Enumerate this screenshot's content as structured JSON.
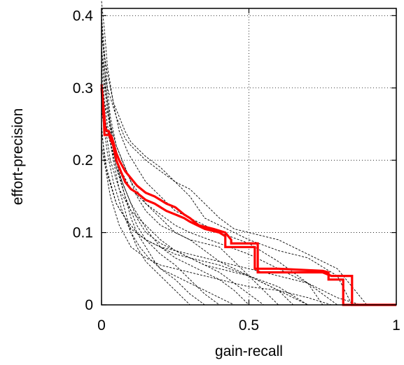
{
  "chart_data": {
    "type": "line",
    "title": "",
    "xlabel": "gain-recall",
    "ylabel": "effort-precision",
    "xlim": [
      0,
      1
    ],
    "ylim": [
      0,
      0.41
    ],
    "xticks": [
      0,
      0.5,
      1
    ],
    "xtick_labels": [
      "0",
      "0.5",
      "1"
    ],
    "yticks": [
      0,
      0.1,
      0.2,
      0.3,
      0.4
    ],
    "ytick_labels": [
      "0",
      "0.1",
      "0.2",
      "0.3",
      "0.4"
    ],
    "grid": true,
    "legend": "none",
    "colors": {
      "highlight": "#ff0000",
      "background": "#000000"
    },
    "series": [
      {
        "style": "highlight",
        "x": [
          0,
          0.005,
          0.01,
          0.012,
          0.02,
          0.025,
          0.03,
          0.04,
          0.05,
          0.06,
          0.07,
          0.08,
          0.1,
          0.12,
          0.15,
          0.18,
          0.2,
          0.22,
          0.25,
          0.28,
          0.3,
          0.35,
          0.4,
          0.42,
          0.42,
          0.5,
          0.52,
          0.52,
          0.6,
          0.7,
          0.75,
          0.77,
          0.77,
          0.8,
          0.82,
          0.82,
          1.0
        ],
        "y": [
          0.305,
          0.28,
          0.26,
          0.245,
          0.24,
          0.24,
          0.23,
          0.22,
          0.2,
          0.19,
          0.18,
          0.17,
          0.16,
          0.155,
          0.145,
          0.14,
          0.135,
          0.13,
          0.125,
          0.12,
          0.115,
          0.105,
          0.1,
          0.095,
          0.08,
          0.08,
          0.08,
          0.05,
          0.05,
          0.048,
          0.047,
          0.045,
          0.035,
          0.035,
          0.035,
          0,
          0
        ]
      },
      {
        "style": "highlight",
        "x": [
          0,
          0.004,
          0.008,
          0.01,
          0.02,
          0.03,
          0.035,
          0.04,
          0.05,
          0.06,
          0.08,
          0.1,
          0.12,
          0.15,
          0.18,
          0.2,
          0.22,
          0.25,
          0.28,
          0.3,
          0.33,
          0.38,
          0.42,
          0.44,
          0.44,
          0.5,
          0.53,
          0.53,
          0.6,
          0.7,
          0.75,
          0.78,
          0.78,
          0.83,
          0.85,
          0.85,
          1.0
        ],
        "y": [
          0.3,
          0.275,
          0.255,
          0.235,
          0.235,
          0.235,
          0.232,
          0.225,
          0.21,
          0.2,
          0.185,
          0.175,
          0.165,
          0.155,
          0.15,
          0.145,
          0.14,
          0.135,
          0.125,
          0.12,
          0.11,
          0.105,
          0.1,
          0.09,
          0.085,
          0.085,
          0.085,
          0.045,
          0.045,
          0.045,
          0.045,
          0.04,
          0.04,
          0.04,
          0.04,
          0,
          0
        ]
      },
      {
        "style": "background",
        "x": [
          0,
          0.01,
          0.02,
          0.04,
          0.06,
          0.08,
          0.1,
          0.15,
          0.2,
          0.25,
          0.3,
          0.35,
          0.4,
          0.5,
          0.6,
          0.7,
          0.8,
          0.85
        ],
        "y": [
          0.42,
          0.38,
          0.33,
          0.28,
          0.26,
          0.24,
          0.225,
          0.205,
          0.19,
          0.17,
          0.15,
          0.12,
          0.11,
          0.09,
          0.075,
          0.065,
          0.04,
          0
        ]
      },
      {
        "style": "background",
        "x": [
          0,
          0.01,
          0.02,
          0.03,
          0.05,
          0.08,
          0.1,
          0.15,
          0.2,
          0.25,
          0.3,
          0.35,
          0.4,
          0.45,
          0.5,
          0.6,
          0.7
        ],
        "y": [
          0.4,
          0.35,
          0.3,
          0.26,
          0.22,
          0.19,
          0.17,
          0.14,
          0.12,
          0.1,
          0.09,
          0.085,
          0.08,
          0.06,
          0.04,
          0.02,
          0
        ]
      },
      {
        "style": "background",
        "x": [
          0,
          0.015,
          0.03,
          0.05,
          0.07,
          0.1,
          0.13,
          0.16,
          0.2,
          0.25,
          0.3,
          0.35,
          0.4,
          0.45,
          0.5
        ],
        "y": [
          0.39,
          0.3,
          0.25,
          0.2,
          0.17,
          0.14,
          0.12,
          0.1,
          0.08,
          0.065,
          0.055,
          0.045,
          0.035,
          0.02,
          0
        ]
      },
      {
        "style": "background",
        "x": [
          0,
          0.02,
          0.04,
          0.06,
          0.09,
          0.12,
          0.15,
          0.2,
          0.25,
          0.3,
          0.35,
          0.4,
          0.5,
          0.6,
          0.7,
          0.75
        ],
        "y": [
          0.37,
          0.32,
          0.28,
          0.24,
          0.21,
          0.19,
          0.17,
          0.15,
          0.13,
          0.12,
          0.11,
          0.1,
          0.085,
          0.06,
          0.03,
          0
        ]
      },
      {
        "style": "background",
        "x": [
          0,
          0.01,
          0.03,
          0.05,
          0.08,
          0.1,
          0.12,
          0.15,
          0.2,
          0.25,
          0.3,
          0.35,
          0.4
        ],
        "y": [
          0.36,
          0.3,
          0.24,
          0.19,
          0.15,
          0.13,
          0.11,
          0.09,
          0.07,
          0.055,
          0.035,
          0.015,
          0
        ]
      },
      {
        "style": "background",
        "x": [
          0,
          0.02,
          0.05,
          0.08,
          0.1,
          0.15,
          0.2,
          0.25,
          0.3,
          0.35,
          0.4,
          0.45,
          0.5,
          0.55,
          0.6,
          0.7,
          0.8,
          0.9
        ],
        "y": [
          0.35,
          0.3,
          0.26,
          0.23,
          0.22,
          0.2,
          0.185,
          0.17,
          0.16,
          0.14,
          0.12,
          0.105,
          0.1,
          0.095,
          0.09,
          0.07,
          0.05,
          0
        ]
      },
      {
        "style": "background",
        "x": [
          0,
          0.02,
          0.04,
          0.06,
          0.08,
          0.1,
          0.12,
          0.15,
          0.18,
          0.2,
          0.25,
          0.3,
          0.35
        ],
        "y": [
          0.34,
          0.28,
          0.22,
          0.18,
          0.15,
          0.12,
          0.1,
          0.08,
          0.06,
          0.05,
          0.035,
          0.015,
          0
        ]
      },
      {
        "style": "background",
        "x": [
          0,
          0.01,
          0.03,
          0.05,
          0.07,
          0.1,
          0.12,
          0.15,
          0.2,
          0.25,
          0.3,
          0.35,
          0.4,
          0.45,
          0.5,
          0.6
        ],
        "y": [
          0.33,
          0.28,
          0.25,
          0.22,
          0.2,
          0.17,
          0.15,
          0.13,
          0.11,
          0.1,
          0.09,
          0.075,
          0.06,
          0.05,
          0.04,
          0
        ]
      },
      {
        "style": "background",
        "x": [
          0,
          0.02,
          0.04,
          0.06,
          0.08,
          0.1,
          0.12,
          0.15,
          0.2,
          0.25,
          0.3
        ],
        "y": [
          0.31,
          0.25,
          0.2,
          0.16,
          0.13,
          0.1,
          0.08,
          0.06,
          0.04,
          0.02,
          0
        ]
      },
      {
        "style": "background",
        "x": [
          0,
          0.01,
          0.02,
          0.04,
          0.06,
          0.08,
          0.1,
          0.15,
          0.2,
          0.25,
          0.3,
          0.4,
          0.5,
          0.6,
          0.7,
          0.8
        ],
        "y": [
          0.3,
          0.26,
          0.24,
          0.21,
          0.19,
          0.175,
          0.16,
          0.14,
          0.125,
          0.11,
          0.1,
          0.085,
          0.07,
          0.05,
          0.03,
          0
        ]
      },
      {
        "style": "background",
        "x": [
          0,
          0.02,
          0.05,
          0.08,
          0.1,
          0.12,
          0.15,
          0.2,
          0.25,
          0.3,
          0.35,
          0.4,
          0.45,
          0.5,
          0.55
        ],
        "y": [
          0.29,
          0.24,
          0.19,
          0.16,
          0.14,
          0.12,
          0.1,
          0.085,
          0.075,
          0.065,
          0.055,
          0.045,
          0.03,
          0.015,
          0
        ]
      },
      {
        "style": "background",
        "x": [
          0,
          0.03,
          0.06,
          0.1,
          0.15,
          0.2,
          0.25,
          0.3,
          0.35,
          0.4,
          0.5,
          0.6,
          0.7
        ],
        "y": [
          0.28,
          0.2,
          0.16,
          0.13,
          0.11,
          0.09,
          0.075,
          0.065,
          0.055,
          0.05,
          0.04,
          0.025,
          0
        ]
      },
      {
        "style": "background",
        "x": [
          0,
          0.02,
          0.04,
          0.07,
          0.1,
          0.13,
          0.16,
          0.2,
          0.25,
          0.3,
          0.35,
          0.4,
          0.45
        ],
        "y": [
          0.27,
          0.21,
          0.17,
          0.13,
          0.1,
          0.08,
          0.065,
          0.05,
          0.04,
          0.03,
          0.02,
          0.01,
          0
        ]
      },
      {
        "style": "background",
        "x": [
          0,
          0.01,
          0.03,
          0.05,
          0.08,
          0.1,
          0.15,
          0.2,
          0.25,
          0.3,
          0.35,
          0.4,
          0.5,
          0.6,
          0.65
        ],
        "y": [
          0.25,
          0.2,
          0.17,
          0.14,
          0.12,
          0.105,
          0.09,
          0.08,
          0.07,
          0.065,
          0.06,
          0.055,
          0.04,
          0.02,
          0
        ]
      },
      {
        "style": "background",
        "x": [
          0,
          0.02,
          0.05,
          0.08,
          0.12,
          0.15,
          0.2,
          0.25,
          0.3,
          0.35,
          0.4,
          0.5,
          0.6,
          0.7,
          0.8,
          0.88
        ],
        "y": [
          0.24,
          0.18,
          0.14,
          0.12,
          0.1,
          0.09,
          0.08,
          0.075,
          0.07,
          0.065,
          0.06,
          0.05,
          0.04,
          0.03,
          0.01,
          0
        ]
      },
      {
        "style": "background",
        "x": [
          0,
          0.03,
          0.06,
          0.1,
          0.15,
          0.2,
          0.25,
          0.3,
          0.35,
          0.4,
          0.45,
          0.5,
          0.6,
          0.7,
          0.78
        ],
        "y": [
          0.22,
          0.15,
          0.11,
          0.08,
          0.065,
          0.055,
          0.05,
          0.045,
          0.04,
          0.035,
          0.03,
          0.025,
          0.02,
          0.01,
          0
        ]
      }
    ]
  }
}
